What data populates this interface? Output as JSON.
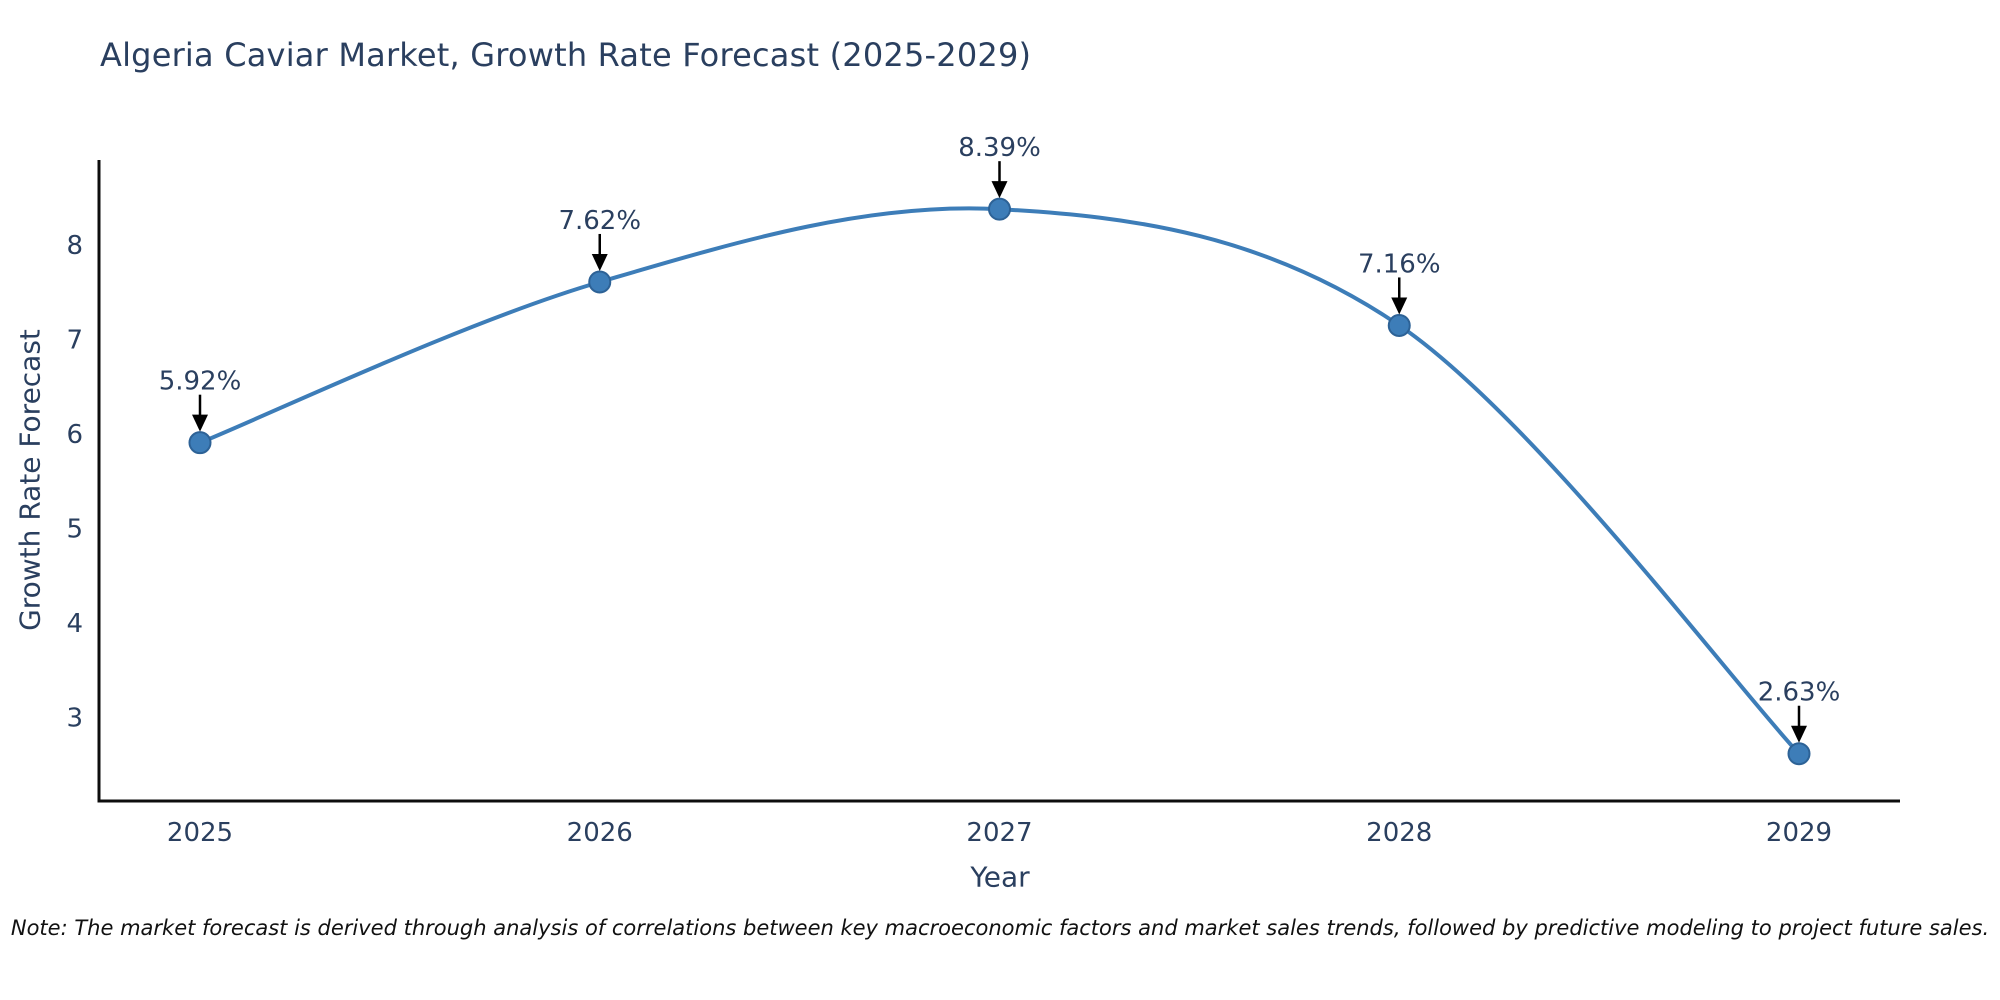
{
  "title": "Algeria Caviar Market, Growth Rate Forecast (2025-2029)",
  "note": "Note: The market forecast is derived through analysis of correlations between key macroeconomic factors and market sales trends, followed by predictive modeling to project future sales.",
  "chart_data": {
    "type": "line",
    "title": "Algeria Caviar Market, Growth Rate Forecast (2025-2029)",
    "xlabel": "Year",
    "ylabel": "Growth Rate Forecast",
    "categories": [
      "2025",
      "2026",
      "2027",
      "2028",
      "2029"
    ],
    "values": [
      5.92,
      7.62,
      8.39,
      7.16,
      2.63
    ],
    "point_labels": [
      "5.92%",
      "7.62%",
      "8.39%",
      "7.16%",
      "2.63%"
    ],
    "y_ticks": [
      3,
      4,
      5,
      6,
      7,
      8
    ],
    "ylim": [
      2.13,
      8.91
    ],
    "grid": false,
    "legend": "none",
    "line_style": "spline",
    "colors": {
      "line": "#3d7db8",
      "marker_fill": "#3d7db8",
      "marker_edge": "#2d6296",
      "arrow": "#000000",
      "axis": "#0d0d0d",
      "text": "#2a3f5f"
    }
  }
}
